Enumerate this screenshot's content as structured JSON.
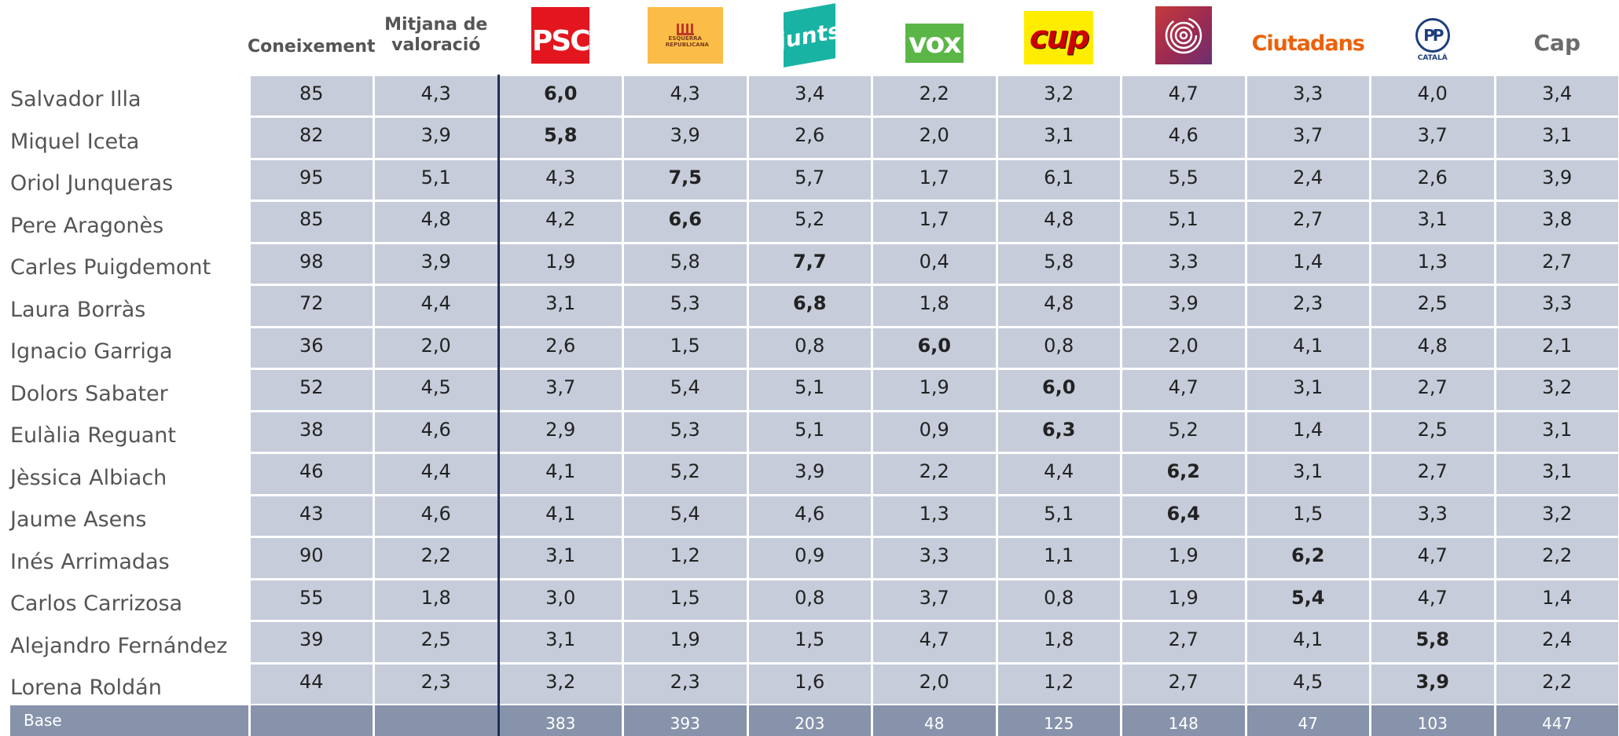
{
  "header": {
    "columns": [
      "Coneixement",
      "Mitjana de valoració"
    ],
    "parties": [
      {
        "label": "PSC",
        "color": "#e3161f"
      },
      {
        "label": "ESQUERRA REPUBLICANA",
        "color": "#fbbd48"
      },
      {
        "label": "junts",
        "color": "#19b3a4"
      },
      {
        "label": "vox",
        "color": "#5ab646"
      },
      {
        "label": "cup",
        "color": "#ffed00"
      },
      {
        "label": null,
        "color": "#9b2b52"
      },
      {
        "label": "Ciutadans",
        "color": "#eb6109"
      },
      {
        "label": "PP",
        "sublabel": "CATALÀ",
        "color": "#1d3e7c"
      },
      {
        "label": "Cap",
        "color": "#6b6b6b"
      }
    ]
  },
  "table": {
    "rows": [
      {
        "name": "Salvador Illa",
        "cells": [
          "85",
          "4,3",
          "6,0",
          "4,3",
          "3,4",
          "2,2",
          "3,2",
          "4,7",
          "3,3",
          "4,0",
          "3,4"
        ],
        "bold": 2
      },
      {
        "name": "Miquel Iceta",
        "cells": [
          "82",
          "3,9",
          "5,8",
          "3,9",
          "2,6",
          "2,0",
          "3,1",
          "4,6",
          "3,7",
          "3,7",
          "3,1"
        ],
        "bold": 2
      },
      {
        "name": "Oriol Junqueras",
        "cells": [
          "95",
          "5,1",
          "4,3",
          "7,5",
          "5,7",
          "1,7",
          "6,1",
          "5,5",
          "2,4",
          "2,6",
          "3,9"
        ],
        "bold": 3
      },
      {
        "name": "Pere Aragonès",
        "cells": [
          "85",
          "4,8",
          "4,2",
          "6,6",
          "5,2",
          "1,7",
          "4,8",
          "5,1",
          "2,7",
          "3,1",
          "3,8"
        ],
        "bold": 3
      },
      {
        "name": "Carles Puigdemont",
        "cells": [
          "98",
          "3,9",
          "1,9",
          "5,8",
          "7,7",
          "0,4",
          "5,8",
          "3,3",
          "1,4",
          "1,3",
          "2,7"
        ],
        "bold": 4
      },
      {
        "name": "Laura Borràs",
        "cells": [
          "72",
          "4,4",
          "3,1",
          "5,3",
          "6,8",
          "1,8",
          "4,8",
          "3,9",
          "2,3",
          "2,5",
          "3,3"
        ],
        "bold": 4
      },
      {
        "name": "Ignacio Garriga",
        "cells": [
          "36",
          "2,0",
          "2,6",
          "1,5",
          "0,8",
          "6,0",
          "0,8",
          "2,0",
          "4,1",
          "4,8",
          "2,1"
        ],
        "bold": 5
      },
      {
        "name": "Dolors Sabater",
        "cells": [
          "52",
          "4,5",
          "3,7",
          "5,4",
          "5,1",
          "1,9",
          "6,0",
          "4,7",
          "3,1",
          "2,7",
          "3,2"
        ],
        "bold": 6
      },
      {
        "name": "Eulàlia Reguant",
        "cells": [
          "38",
          "4,6",
          "2,9",
          "5,3",
          "5,1",
          "0,9",
          "6,3",
          "5,2",
          "1,4",
          "2,5",
          "3,1"
        ],
        "bold": 6
      },
      {
        "name": "Jèssica Albiach",
        "cells": [
          "46",
          "4,4",
          "4,1",
          "5,2",
          "3,9",
          "2,2",
          "4,4",
          "6,2",
          "3,1",
          "2,7",
          "3,1"
        ],
        "bold": 7
      },
      {
        "name": "Jaume Asens",
        "cells": [
          "43",
          "4,6",
          "4,1",
          "5,4",
          "4,6",
          "1,3",
          "5,1",
          "6,4",
          "1,5",
          "3,3",
          "3,2"
        ],
        "bold": 7
      },
      {
        "name": "Inés Arrimadas",
        "cells": [
          "90",
          "2,2",
          "3,1",
          "1,2",
          "0,9",
          "3,3",
          "1,1",
          "1,9",
          "6,2",
          "4,7",
          "2,2"
        ],
        "bold": 8
      },
      {
        "name": "Carlos Carrizosa",
        "cells": [
          "55",
          "1,8",
          "3,0",
          "1,5",
          "0,8",
          "3,7",
          "0,8",
          "1,9",
          "5,4",
          "4,7",
          "1,4"
        ],
        "bold": 8
      },
      {
        "name": "Alejandro Fernández",
        "cells": [
          "39",
          "2,5",
          "3,1",
          "1,9",
          "1,5",
          "4,7",
          "1,8",
          "2,7",
          "4,1",
          "5,8",
          "2,4"
        ],
        "bold": 9
      },
      {
        "name": "Lorena Roldán",
        "cells": [
          "44",
          "2,3",
          "3,2",
          "2,3",
          "1,6",
          "2,0",
          "1,2",
          "2,7",
          "4,5",
          "3,9",
          "2,2"
        ],
        "bold": 9
      }
    ],
    "base": {
      "label": "Base",
      "cells": [
        null,
        null,
        "383",
        "393",
        "203",
        "48",
        "125",
        "148",
        "47",
        "103",
        "447"
      ]
    }
  }
}
